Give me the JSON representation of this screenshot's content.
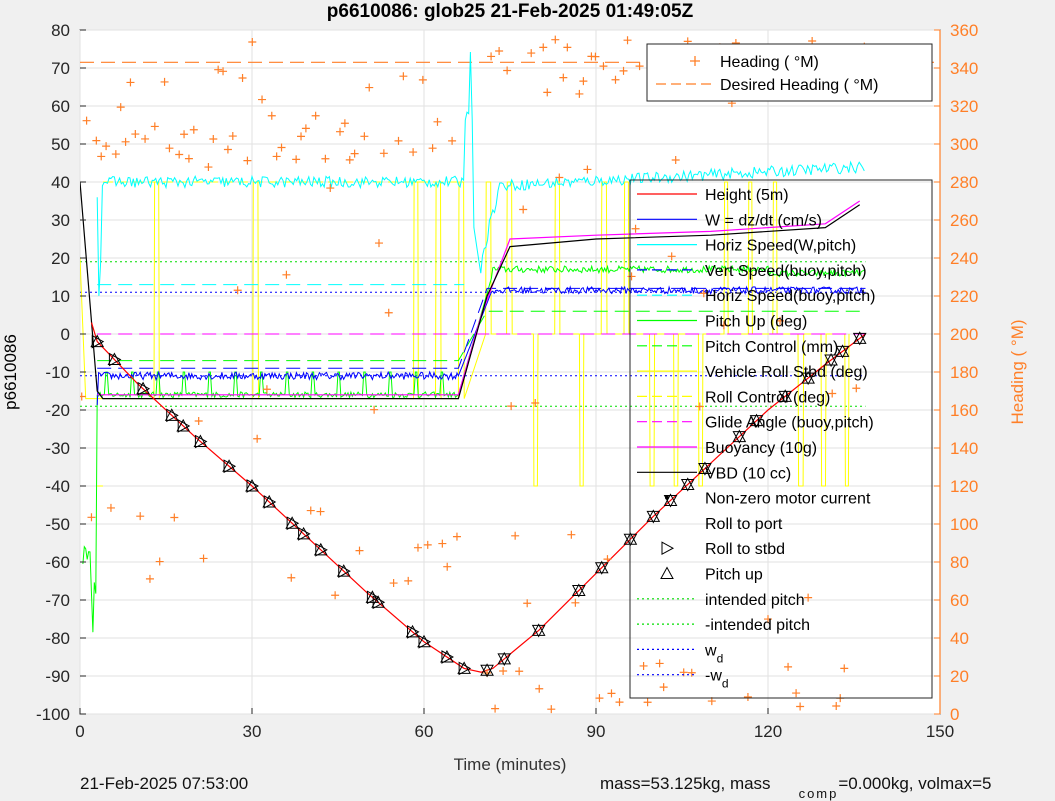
{
  "chart_data": {
    "type": "line",
    "title": "p6610086: glob25 21-Feb-2025 01:49:05Z",
    "xlabel": "Time (minutes)",
    "ylabel": "p6610086",
    "y2label": "Heading (  °M)",
    "xlim": [
      0,
      150
    ],
    "ylim": [
      -100,
      80
    ],
    "y2lim": [
      0,
      360
    ],
    "xticks": [
      0,
      30,
      60,
      90,
      120,
      150
    ],
    "yticks": [
      -100,
      -90,
      -80,
      -70,
      -60,
      -50,
      -40,
      -30,
      -20,
      -10,
      0,
      10,
      20,
      30,
      40,
      50,
      60,
      70,
      80
    ],
    "y2ticks": [
      0,
      20,
      40,
      60,
      80,
      100,
      120,
      140,
      160,
      180,
      200,
      220,
      240,
      260,
      280,
      300,
      320,
      340,
      360
    ],
    "grid": true,
    "colors": {
      "height": "#ff0000",
      "w": "#0000ff",
      "horiz_speed": "#00ffff",
      "vert_speed": "#0000ff",
      "pitch": "#00ff00",
      "roll": "#ffff00",
      "glide": "#ff00ff",
      "buoyancy": "#ff00ff",
      "vbd": "#000000",
      "heading": "#ff7f27"
    },
    "legend_top": {
      "placement": "top-right",
      "entries": [
        "Heading (  °M)",
        "Desired Heading (   °M)"
      ]
    },
    "legend_main": {
      "placement": "right",
      "entries": [
        "Height (5m)",
        "W = dz/dt (cm/s)",
        "Horiz Speed(W,pitch)",
        "Vert Speed(buoy,pitch)",
        "Horiz Speed(buoy,pitch)",
        "Pitch Up (deg)",
        "Pitch Control (mm)",
        "Vehicle Roll Stbd (deg)",
        "Roll Control (deg)",
        "Glide Angle (buoy,pitch)",
        "Buoyancy (10g)",
        "VBD (10 cc)",
        "Non-zero motor current",
        "Roll to port",
        "Roll to stbd",
        "Pitch up",
        "intended pitch",
        "-intended pitch",
        "w",
        "-w"
      ],
      "subscripts": [
        "d",
        "d"
      ]
    },
    "series": [
      {
        "name": "Height (5m)",
        "x": [
          2,
          3,
          10,
          20,
          30,
          40,
          50,
          60,
          67,
          70,
          72,
          80,
          90,
          100,
          110,
          120,
          130,
          137
        ],
        "y": [
          3,
          -2,
          -13,
          -27,
          -40,
          -54,
          -68,
          -81,
          -88,
          -89,
          -88,
          -78,
          -63,
          -48,
          -34,
          -20,
          -8,
          0
        ]
      },
      {
        "name": "VBD (10 cc)",
        "x": [
          0,
          3,
          4,
          66,
          71,
          75,
          90,
          110,
          130,
          136
        ],
        "y": [
          40,
          -15,
          -17,
          -17,
          10,
          23,
          25,
          26,
          28,
          34
        ]
      },
      {
        "name": "Buoyancy (10g)",
        "x": [
          3,
          66,
          70,
          75,
          90,
          110,
          130,
          136
        ],
        "y": [
          -16,
          -16,
          5,
          25,
          26,
          27,
          29,
          35
        ]
      },
      {
        "name": "Horiz Speed(W,pitch)",
        "x": [
          3,
          4,
          30,
          60,
          67,
          68,
          70,
          75,
          100,
          120,
          137
        ],
        "y": [
          5,
          40,
          40,
          40,
          40,
          75,
          20,
          40,
          40,
          42,
          45
        ]
      },
      {
        "name": "Desired Heading (   °M)",
        "y2_value": 343
      },
      {
        "name": "intended pitch",
        "y_value": 19
      },
      {
        "name": "-intended pitch",
        "y_value": -19
      },
      {
        "name": "w",
        "subscript": "d",
        "y_value": 11
      },
      {
        "name": "-w",
        "subscript": "d",
        "y_value": -11
      }
    ],
    "markers_pitch_up_x": [
      3,
      6,
      11,
      16,
      18,
      21,
      26,
      30,
      33,
      37,
      39,
      42,
      46,
      51,
      52,
      58,
      60,
      64,
      67,
      71,
      74,
      80,
      87,
      91,
      96,
      100,
      103,
      106,
      109,
      115,
      118,
      123,
      127,
      131,
      133,
      136
    ]
  },
  "footer": {
    "timestamp": "21-Feb-2025 07:53:00",
    "mass_text": "mass=53.125kg, mass",
    "comp_sub": "comp",
    "comp_rest": "=0.000kg, volmax=5"
  }
}
